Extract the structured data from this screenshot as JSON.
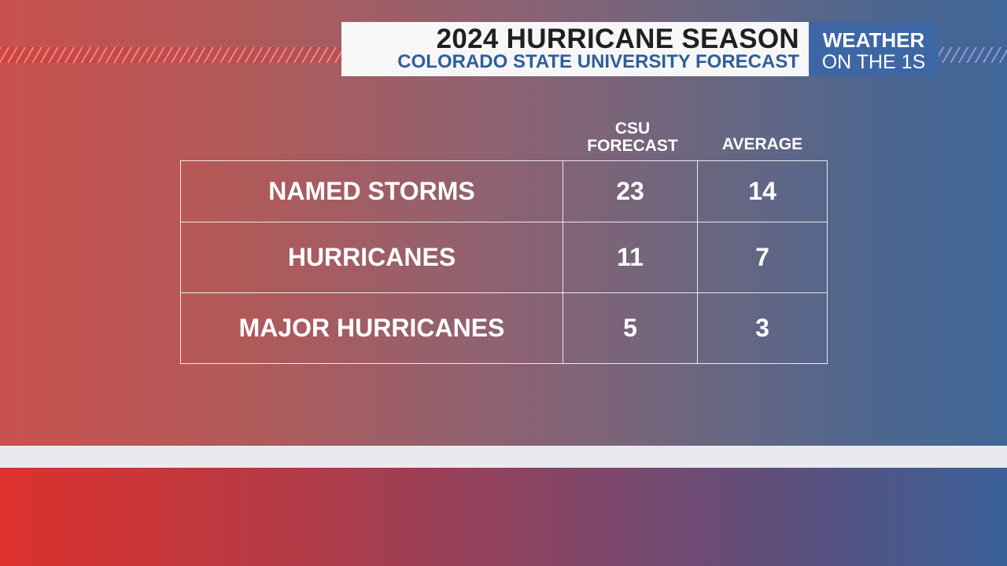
{
  "header": {
    "title": "2024 HURRICANE SEASON",
    "subtitle": "COLORADO STATE UNIVERSITY FORECAST"
  },
  "brand": {
    "line1": "WEATHER",
    "line2": "ON THE 1S"
  },
  "table": {
    "columns": [
      "CSU FORECAST",
      "AVERAGE"
    ],
    "rows": [
      {
        "label": "NAMED STORMS",
        "forecast": "23",
        "average": "14"
      },
      {
        "label": "HURRICANES",
        "forecast": "11",
        "average": "7"
      },
      {
        "label": "MAJOR HURRICANES",
        "forecast": "5",
        "average": "3"
      }
    ]
  },
  "colors": {
    "accent_red": "#dd312d",
    "accent_blue": "#3d66a5",
    "title_text": "#1f1f24",
    "subtitle_text": "#2f5e9a"
  }
}
